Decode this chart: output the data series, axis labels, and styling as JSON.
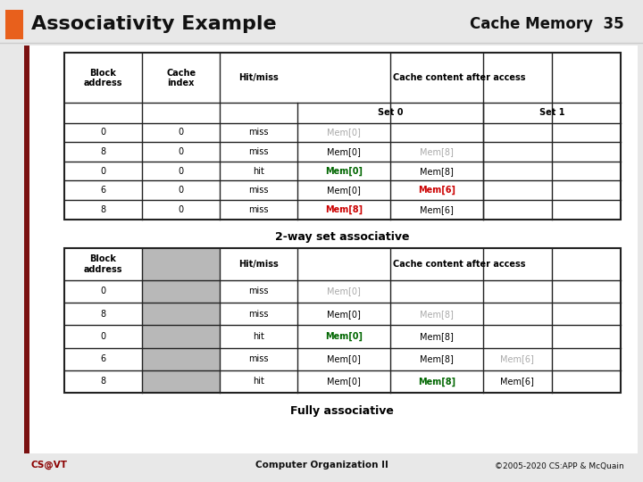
{
  "title": "Associativity Example",
  "slide_label": "Cache Memory  35",
  "title_orange": "#e8601c",
  "slide_bg": "#e8e8e8",
  "content_bg": "#ffffff",
  "dark_red_border": "#7a1010",
  "table1_label": "2-way set associative",
  "table1_rows": [
    {
      "block": "0",
      "index": "0",
      "hm": "miss",
      "cells": [
        [
          "Mem[0]",
          "#aaaaaa",
          "normal"
        ],
        [
          "",
          "#000000",
          "normal"
        ],
        [
          "",
          "#000000",
          "normal"
        ],
        [
          "",
          "#000000",
          "normal"
        ]
      ]
    },
    {
      "block": "8",
      "index": "0",
      "hm": "miss",
      "cells": [
        [
          "Mem[0]",
          "#000000",
          "normal"
        ],
        [
          "Mem[8]",
          "#aaaaaa",
          "normal"
        ],
        [
          "",
          "#000000",
          "normal"
        ],
        [
          "",
          "#000000",
          "normal"
        ]
      ]
    },
    {
      "block": "0",
      "index": "0",
      "hm": "hit",
      "cells": [
        [
          "Mem[0]",
          "#006600",
          "bold"
        ],
        [
          "Mem[8]",
          "#000000",
          "normal"
        ],
        [
          "",
          "#000000",
          "normal"
        ],
        [
          "",
          "#000000",
          "normal"
        ]
      ]
    },
    {
      "block": "6",
      "index": "0",
      "hm": "miss",
      "cells": [
        [
          "Mem[0]",
          "#000000",
          "normal"
        ],
        [
          "Mem[6]",
          "#cc0000",
          "bold"
        ],
        [
          "",
          "#000000",
          "normal"
        ],
        [
          "",
          "#000000",
          "normal"
        ]
      ]
    },
    {
      "block": "8",
      "index": "0",
      "hm": "miss",
      "cells": [
        [
          "Mem[8]",
          "#cc0000",
          "bold"
        ],
        [
          "Mem[6]",
          "#000000",
          "normal"
        ],
        [
          "",
          "#000000",
          "normal"
        ],
        [
          "",
          "#000000",
          "normal"
        ]
      ]
    }
  ],
  "table2_label": "Fully associative",
  "table2_rows": [
    {
      "block": "0",
      "hm": "miss",
      "cells": [
        [
          "Mem[0]",
          "#aaaaaa",
          "normal"
        ],
        [
          "",
          "#000000",
          "normal"
        ],
        [
          "",
          "#000000",
          "normal"
        ],
        [
          "",
          "#000000",
          "normal"
        ]
      ]
    },
    {
      "block": "8",
      "hm": "miss",
      "cells": [
        [
          "Mem[0]",
          "#000000",
          "normal"
        ],
        [
          "Mem[8]",
          "#aaaaaa",
          "normal"
        ],
        [
          "",
          "#000000",
          "normal"
        ],
        [
          "",
          "#000000",
          "normal"
        ]
      ]
    },
    {
      "block": "0",
      "hm": "hit",
      "cells": [
        [
          "Mem[0]",
          "#006600",
          "bold"
        ],
        [
          "Mem[8]",
          "#000000",
          "normal"
        ],
        [
          "",
          "#000000",
          "normal"
        ],
        [
          "",
          "#000000",
          "normal"
        ]
      ]
    },
    {
      "block": "6",
      "hm": "miss",
      "cells": [
        [
          "Mem[0]",
          "#000000",
          "normal"
        ],
        [
          "Mem[8]",
          "#000000",
          "normal"
        ],
        [
          "Mem[6]",
          "#aaaaaa",
          "normal"
        ],
        [
          "",
          "#000000",
          "normal"
        ]
      ]
    },
    {
      "block": "8",
      "hm": "hit",
      "cells": [
        [
          "Mem[0]",
          "#000000",
          "normal"
        ],
        [
          "Mem[8]",
          "#006600",
          "bold"
        ],
        [
          "Mem[6]",
          "#000000",
          "normal"
        ],
        [
          "",
          "#000000",
          "normal"
        ]
      ]
    }
  ],
  "footer_left": "CS@VT",
  "footer_center": "Computer Organization II",
  "footer_right": "©2005-2020 CS:APP & McQuain"
}
